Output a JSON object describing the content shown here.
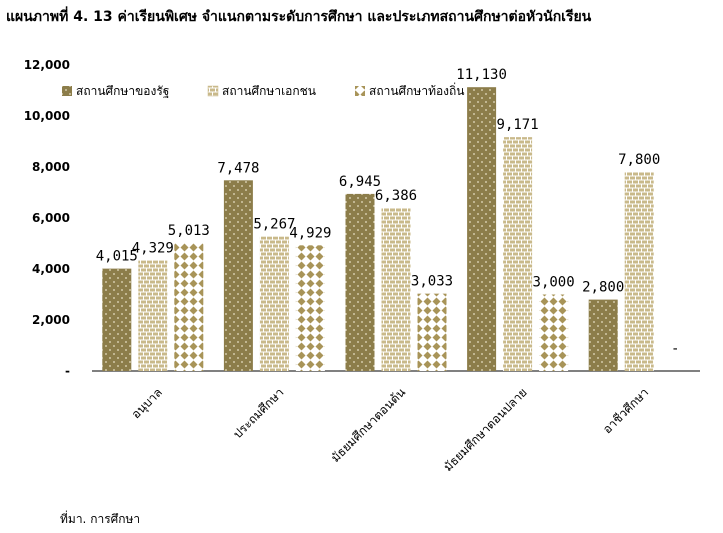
{
  "title": "แผนภาพที่ 4. 13 ค่าเรียนพิเศษ จำแนกตามระดับการศึกษา และประเภทสถานศึกษาต่อหัวนักเรียน",
  "source": "ที่มา. การศึกษา",
  "chart_data": {
    "type": "bar",
    "categories": [
      "อนุบาล",
      "ประถมศึกษา",
      "มัธยมศึกษาตอนต้น",
      "มัธยมศึกษาตอนปลาย",
      "อาชีวศึกษา"
    ],
    "series": [
      {
        "name": "สถานศึกษาของรัฐ",
        "values": [
          4015,
          7478,
          6945,
          11130,
          2800
        ],
        "labels": [
          "4,015",
          "7,478",
          "6,945",
          "11,130",
          "2,800"
        ],
        "color": "#8c7d4a"
      },
      {
        "name": "สถานศึกษาเอกชน",
        "values": [
          4329,
          5267,
          6386,
          9171,
          7800
        ],
        "labels": [
          "4,329",
          "5,267",
          "6,386",
          "9,171",
          "7,800"
        ],
        "color": "#d8caa0"
      },
      {
        "name": "สถานศึกษาท้องถิ่น",
        "values": [
          5013,
          4929,
          3033,
          3000,
          null
        ],
        "labels": [
          "5,013",
          "4,929",
          "3,033",
          "3,000",
          "-"
        ],
        "color": "#a89458"
      }
    ],
    "ylim": [
      0,
      12000
    ],
    "yticks": [
      0,
      2000,
      4000,
      6000,
      8000,
      10000,
      12000
    ],
    "ytick_labels": [
      "-",
      "2,000",
      "4,000",
      "6,000",
      "8,000",
      "10,000",
      "12,000"
    ],
    "grid": false,
    "legend_position": "top-left"
  }
}
